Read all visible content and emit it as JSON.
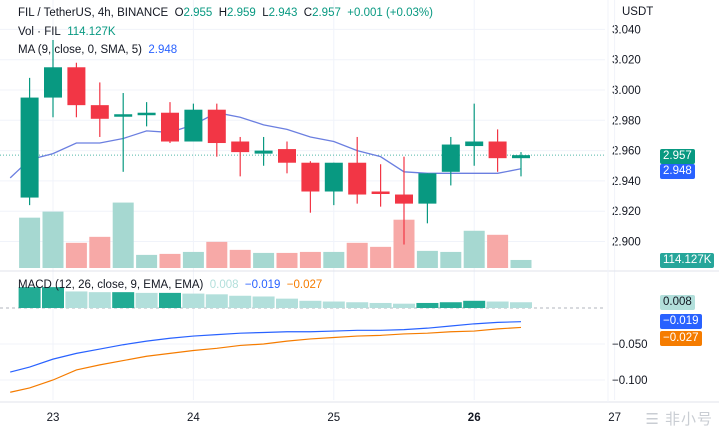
{
  "header": {
    "symbol": "FIL / TetherUS, 4h, BINANCE",
    "o_label": "O",
    "o": "2.955",
    "h_label": "H",
    "h": "2.959",
    "l_label": "L",
    "l": "2.943",
    "c_label": "C",
    "c": "2.957",
    "change": "+0.001 (+0.03%)",
    "vol_label": "Vol · FIL",
    "vol": "114.127K",
    "ma_label": "MA (9, close, 0, SMA, 5)",
    "ma": "2.948",
    "macd_label": "MACD (12, 26, close, 9, EMA, EMA)",
    "macd_hist": "0.008",
    "macd": "−0.019",
    "macd_signal": "−0.027"
  },
  "price_axis": {
    "unit": "USDT",
    "ticks": [
      "3.040",
      "3.020",
      "3.000",
      "2.980",
      "2.960",
      "2.940",
      "2.920",
      "2.900"
    ],
    "last_price_tag": "2.957",
    "ma_tag": "2.948",
    "volume_tag": "114.127K",
    "macd_ticks": [
      "−0.050",
      "−0.100"
    ],
    "macd_hist_tag": "0.008",
    "macd_tag": "−0.019",
    "signal_tag": "−0.027"
  },
  "watermark": "非小号",
  "colors": {
    "up": "#089981",
    "down": "#f23645",
    "vol_up": "#a6d8d1",
    "vol_down": "#f7a9a7",
    "ma": "#6b7fe0",
    "macd": "#2962ff",
    "signal": "#f57c00",
    "hist_grow": "#22ab94",
    "hist_fall": "#b2dfdb"
  },
  "chart_data": {
    "type": "candlestick",
    "x_ticks": [
      {
        "label": "23",
        "index": 2
      },
      {
        "label": "24",
        "index": 8
      },
      {
        "label": "25",
        "index": 14
      },
      {
        "label": "26",
        "index": 20,
        "bold": true
      },
      {
        "label": "27",
        "index": 26
      }
    ],
    "price_range": [
      2.888,
      3.052
    ],
    "candles": [
      {
        "o": 2.929,
        "h": 3.008,
        "l": 2.924,
        "c": 2.995,
        "v": 714
      },
      {
        "o": 2.995,
        "h": 3.033,
        "l": 2.982,
        "c": 3.015,
        "v": 800
      },
      {
        "o": 3.015,
        "h": 3.018,
        "l": 2.982,
        "c": 2.99,
        "v": 357
      },
      {
        "o": 2.99,
        "h": 3.005,
        "l": 2.969,
        "c": 2.981,
        "v": 442
      },
      {
        "o": 2.983,
        "h": 2.998,
        "l": 2.946,
        "c": 2.984,
        "v": 928
      },
      {
        "o": 2.984,
        "h": 2.992,
        "l": 2.976,
        "c": 2.985,
        "v": 186
      },
      {
        "o": 2.985,
        "h": 2.992,
        "l": 2.965,
        "c": 2.966,
        "v": 200
      },
      {
        "o": 2.966,
        "h": 2.991,
        "l": 2.966,
        "c": 2.987,
        "v": 228
      },
      {
        "o": 2.987,
        "h": 2.991,
        "l": 2.956,
        "c": 2.965,
        "v": 371
      },
      {
        "o": 2.966,
        "h": 2.969,
        "l": 2.943,
        "c": 2.959,
        "v": 257
      },
      {
        "o": 2.958,
        "h": 2.969,
        "l": 2.95,
        "c": 2.96,
        "v": 214
      },
      {
        "o": 2.961,
        "h": 2.966,
        "l": 2.945,
        "c": 2.952,
        "v": 214
      },
      {
        "o": 2.952,
        "h": 2.953,
        "l": 2.919,
        "c": 2.933,
        "v": 228
      },
      {
        "o": 2.933,
        "h": 2.952,
        "l": 2.924,
        "c": 2.952,
        "v": 228
      },
      {
        "o": 2.952,
        "h": 2.969,
        "l": 2.925,
        "c": 2.931,
        "v": 357
      },
      {
        "o": 2.933,
        "h": 2.951,
        "l": 2.923,
        "c": 2.932,
        "v": 300
      },
      {
        "o": 2.931,
        "h": 2.956,
        "l": 2.898,
        "c": 2.925,
        "v": 685
      },
      {
        "o": 2.925,
        "h": 2.945,
        "l": 2.912,
        "c": 2.945,
        "v": 243
      },
      {
        "o": 2.946,
        "h": 2.969,
        "l": 2.937,
        "c": 2.964,
        "v": 228
      },
      {
        "o": 2.963,
        "h": 2.991,
        "l": 2.95,
        "c": 2.966,
        "v": 528
      },
      {
        "o": 2.966,
        "h": 2.974,
        "l": 2.946,
        "c": 2.955,
        "v": 471
      },
      {
        "o": 2.955,
        "h": 2.959,
        "l": 2.943,
        "c": 2.957,
        "v": 114.127
      }
    ],
    "candle_start_index": 1,
    "volume_unit": "K",
    "ma": [
      2.942,
      2.954,
      2.958,
      2.965,
      2.965,
      2.968,
      2.973,
      2.972,
      2.977,
      2.985,
      2.982,
      2.977,
      2.974,
      2.969,
      2.966,
      2.96,
      2.956,
      2.946,
      2.945,
      2.945,
      2.945,
      2.945,
      2.948
    ],
    "macd_range": [
      -0.125,
      0.045
    ],
    "macd_hist": [
      0.029,
      0.029,
      0.023,
      0.022,
      0.022,
      0.021,
      0.021,
      0.02,
      0.019,
      0.017,
      0.016,
      0.013,
      0.01,
      0.009,
      0.008,
      0.007,
      0.006,
      0.007,
      0.008,
      0.01,
      0.009,
      0.008
    ],
    "macd_line": [
      -0.089,
      -0.082,
      -0.071,
      -0.063,
      -0.057,
      -0.051,
      -0.046,
      -0.042,
      -0.039,
      -0.037,
      -0.035,
      -0.034,
      -0.033,
      -0.033,
      -0.032,
      -0.031,
      -0.031,
      -0.03,
      -0.028,
      -0.025,
      -0.022,
      -0.02,
      -0.019
    ],
    "signal_line": [
      -0.117,
      -0.111,
      -0.1,
      -0.086,
      -0.079,
      -0.073,
      -0.067,
      -0.063,
      -0.059,
      -0.056,
      -0.052,
      -0.05,
      -0.046,
      -0.043,
      -0.041,
      -0.039,
      -0.038,
      -0.036,
      -0.035,
      -0.033,
      -0.032,
      -0.029,
      -0.027
    ]
  }
}
